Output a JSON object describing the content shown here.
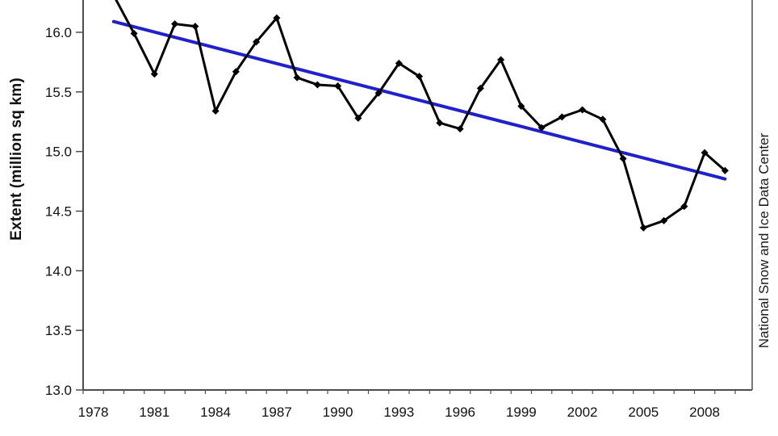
{
  "credit": "National Snow and Ice Data Center",
  "chart_data": {
    "type": "line",
    "title": "",
    "xlabel": "",
    "ylabel": "Extent (million sq km)",
    "grid": false,
    "legend": "none",
    "note": "top of plot (title and first data point) cropped out of screenshot",
    "x_axis": {
      "categories_start": 1978,
      "categories_end": 2010,
      "tick_labels": [
        "1978",
        "1981",
        "1984",
        "1987",
        "1990",
        "1993",
        "1996",
        "1999",
        "2002",
        "2005",
        "2008"
      ],
      "tick_label_step_years": 3,
      "minor_tick_every_year": true
    },
    "y_axis": {
      "tick_labels": [
        "16.0",
        "15.5",
        "15.0",
        "14.5",
        "14.0",
        "13.5",
        "13.0"
      ],
      "tick_values": [
        16.0,
        15.5,
        15.0,
        14.5,
        14.0,
        13.5,
        13.0
      ],
      "visible_range": [
        13.0,
        16.27
      ]
    },
    "x": [
      1979,
      1980,
      1981,
      1982,
      1983,
      1984,
      1985,
      1986,
      1987,
      1988,
      1989,
      1990,
      1991,
      1992,
      1993,
      1994,
      1995,
      1996,
      1997,
      1998,
      1999,
      2000,
      2001,
      2002,
      2003,
      2004,
      2005,
      2006,
      2007,
      2008,
      2009
    ],
    "series": [
      {
        "role": "monthly-extent",
        "color": "#000000",
        "marker": "diamond",
        "values": [
          16.31,
          15.99,
          15.65,
          16.07,
          16.05,
          15.34,
          15.67,
          15.92,
          16.12,
          15.62,
          15.56,
          15.55,
          15.28,
          15.49,
          15.74,
          15.63,
          15.24,
          15.19,
          15.53,
          15.77,
          15.38,
          15.2,
          15.29,
          15.35,
          15.27,
          14.94,
          14.36,
          14.42,
          14.54,
          14.99,
          14.84
        ]
      }
    ],
    "trend_line": {
      "role": "linear-trend",
      "color": "#2121cc",
      "start": {
        "x": 1979,
        "y": 16.09
      },
      "end": {
        "x": 2009,
        "y": 14.77
      }
    },
    "colors": {
      "axis": "#4d4d4d",
      "tick_text": "#111111",
      "background": "#ffffff"
    }
  }
}
